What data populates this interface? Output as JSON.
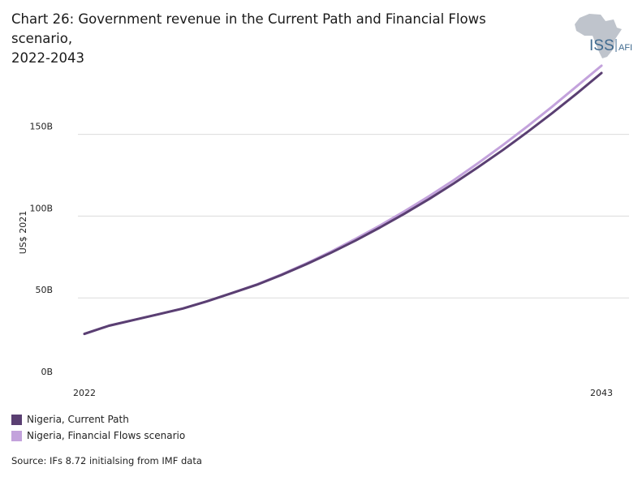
{
  "title_line1": "Chart 26: Government revenue in the Current Path and Financial Flows scenario,",
  "title_line2": "2022-2043",
  "logo": {
    "text_main": "ISS",
    "text_sub": "AFI",
    "icon": "africa-map-icon",
    "map_color": "#bfc4cc",
    "text_color": "#3f6a8f"
  },
  "source": "Source: IFs 8.72 initialsing from IMF data",
  "chart_data": {
    "type": "line",
    "ylabel": "US$ 2021",
    "xlabel": "",
    "x_ticks": [
      "2022",
      "2043"
    ],
    "y_ticks": [
      "0B",
      "50B",
      "100B",
      "150B"
    ],
    "y_tick_values": [
      0,
      50,
      100,
      150
    ],
    "xlim": [
      2022,
      2043
    ],
    "ylim": [
      0,
      190
    ],
    "grid": true,
    "legend_position": "bottom-left",
    "x": [
      2022,
      2023,
      2024,
      2025,
      2026,
      2027,
      2028,
      2029,
      2030,
      2031,
      2032,
      2033,
      2034,
      2035,
      2036,
      2037,
      2038,
      2039,
      2040,
      2041,
      2042,
      2043
    ],
    "series": [
      {
        "name": "Nigeria, Current Path",
        "color": "#5a3f72",
        "values": [
          28,
          33,
          36.5,
          40,
          43.5,
          48,
          53,
          58,
          64,
          70.5,
          77.5,
          85,
          93,
          101.5,
          110.5,
          120,
          130,
          140.5,
          151.5,
          163,
          175,
          187.5
        ]
      },
      {
        "name": "Nigeria, Financial Flows scenario",
        "color": "#c3a2dc",
        "values": [
          28,
          33,
          36.5,
          40,
          43.5,
          48,
          53,
          58.2,
          64.3,
          71,
          78.2,
          86,
          94.2,
          103,
          112.2,
          122,
          132.5,
          143.5,
          155,
          167,
          179.5,
          192
        ]
      }
    ]
  }
}
